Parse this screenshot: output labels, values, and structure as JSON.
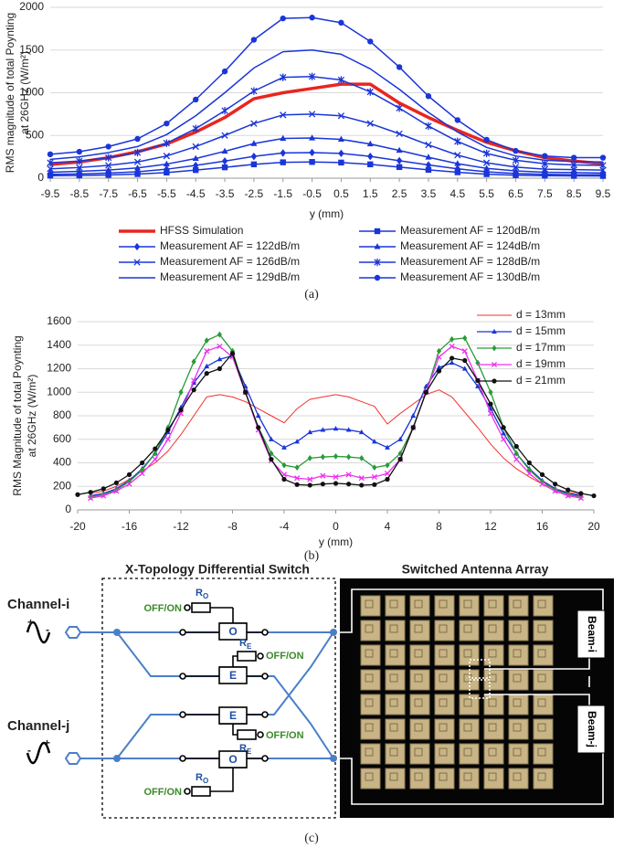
{
  "chart_data": [
    {
      "type": "line",
      "xlabel": "y (mm)",
      "ylabel": [
        "RMS magnitude of total Poynting",
        "at 26GHz  (W/m²)"
      ],
      "x": [
        -9.5,
        -8.5,
        -7.5,
        -6.5,
        -5.5,
        -4.5,
        -3.5,
        -2.5,
        -1.5,
        -0.5,
        0.5,
        1.5,
        2.5,
        3.5,
        4.5,
        5.5,
        6.5,
        7.5,
        8.5,
        9.5
      ],
      "xlim": [
        -9.5,
        9.5
      ],
      "xticks": [
        -9.5,
        -8.5,
        -7.5,
        -6.5,
        -5.5,
        -4.5,
        -3.5,
        -2.5,
        -1.5,
        -0.5,
        0.5,
        1.5,
        2.5,
        3.5,
        4.5,
        5.5,
        6.5,
        7.5,
        8.5,
        9.5
      ],
      "ylim": [
        0,
        2000
      ],
      "yticks": [
        0,
        500,
        1000,
        1500,
        2000
      ],
      "grid": true,
      "legend": "bottom",
      "series": [
        {
          "name": "HFSS Simulation",
          "color": "#e8261f",
          "marker": "none",
          "linewidth": 3.5,
          "values": [
            160,
            190,
            240,
            310,
            400,
            540,
            710,
            930,
            1000,
            1050,
            1100,
            1100,
            880,
            710,
            560,
            420,
            320,
            240,
            200,
            170
          ]
        },
        {
          "name": "Measurement AF = 120dB/m",
          "color": "#1a35d8",
          "marker": "square",
          "linewidth": 1.5,
          "values": [
            30,
            32,
            38,
            48,
            66,
            95,
            127,
            162,
            186,
            190,
            183,
            162,
            130,
            98,
            69,
            47,
            35,
            29,
            27,
            26
          ]
        },
        {
          "name": "Measurement AF = 122dB/m",
          "color": "#1a35d8",
          "marker": "diamond",
          "linewidth": 1.5,
          "values": [
            45,
            50,
            60,
            75,
            105,
            150,
            200,
            255,
            295,
            300,
            290,
            255,
            205,
            155,
            110,
            75,
            55,
            45,
            40,
            40
          ]
        },
        {
          "name": "Measurement AF = 124dB/m",
          "color": "#1a35d8",
          "marker": "triangle",
          "linewidth": 1.5,
          "values": [
            70,
            80,
            95,
            120,
            165,
            230,
            315,
            405,
            465,
            470,
            455,
            400,
            325,
            245,
            170,
            115,
            85,
            70,
            65,
            60
          ]
        },
        {
          "name": "Measurement AF = 126dB/m",
          "color": "#1a35d8",
          "marker": "x",
          "linewidth": 1.5,
          "values": [
            110,
            125,
            150,
            190,
            260,
            370,
            500,
            640,
            740,
            750,
            730,
            640,
            520,
            390,
            270,
            180,
            130,
            105,
            100,
            95
          ]
        },
        {
          "name": "Measurement AF = 128dB/m",
          "color": "#1a35d8",
          "marker": "star",
          "linewidth": 1.5,
          "values": [
            180,
            200,
            240,
            300,
            410,
            580,
            790,
            1020,
            1180,
            1190,
            1150,
            1010,
            820,
            610,
            430,
            290,
            210,
            170,
            155,
            150
          ]
        },
        {
          "name": "Measurement AF = 129dB/m",
          "color": "#1a35d8",
          "marker": "none",
          "linewidth": 1.5,
          "values": [
            220,
            250,
            300,
            370,
            510,
            730,
            1000,
            1290,
            1480,
            1500,
            1450,
            1280,
            1040,
            770,
            540,
            360,
            260,
            210,
            195,
            190
          ]
        },
        {
          "name": "Measurement AF = 130dB/m",
          "color": "#1a35d8",
          "marker": "circle",
          "linewidth": 1.5,
          "values": [
            280,
            310,
            370,
            460,
            640,
            920,
            1250,
            1620,
            1870,
            1880,
            1820,
            1600,
            1300,
            960,
            680,
            450,
            320,
            260,
            240,
            240
          ]
        }
      ]
    },
    {
      "type": "line",
      "xlabel": "y (mm)",
      "ylabel": [
        "RMS Magnitude of total Poynting",
        "at 26GHz (W/m²)"
      ],
      "x": [
        -20,
        -19,
        -18,
        -17,
        -16,
        -15,
        -14,
        -13,
        -12,
        -11,
        -10,
        -9,
        -8,
        -7,
        -6,
        -5,
        -4,
        -3,
        -2,
        -1,
        0,
        1,
        2,
        3,
        4,
        5,
        6,
        7,
        8,
        9,
        10,
        11,
        12,
        13,
        14,
        15,
        16,
        17,
        18,
        19,
        20
      ],
      "xlim": [
        -20,
        20
      ],
      "xticks": [
        -20,
        -16,
        -12,
        -8,
        -4,
        0,
        4,
        8,
        12,
        16,
        20
      ],
      "ylim": [
        0,
        1600
      ],
      "yticks": [
        0,
        200,
        400,
        600,
        800,
        1000,
        1200,
        1400,
        1600
      ],
      "grid": true,
      "legend": "upper right",
      "series": [
        {
          "name": "d = 13mm",
          "color": "#f0302a",
          "marker": "none",
          "linewidth": 1,
          "values": [
            null,
            140,
            160,
            200,
            260,
            330,
            400,
            500,
            640,
            800,
            960,
            980,
            960,
            920,
            860,
            800,
            740,
            860,
            940,
            960,
            980,
            960,
            920,
            880,
            730,
            820,
            900,
            980,
            1020,
            960,
            830,
            700,
            560,
            440,
            350,
            280,
            220,
            180,
            150,
            130,
            null
          ]
        },
        {
          "name": "d = 15mm",
          "color": "#1a35d8",
          "marker": "triangle",
          "linewidth": 1.3,
          "values": [
            null,
            120,
            140,
            180,
            250,
            350,
            480,
            660,
            870,
            1080,
            1220,
            1280,
            1310,
            1050,
            800,
            600,
            530,
            580,
            660,
            680,
            690,
            680,
            660,
            580,
            530,
            600,
            800,
            1050,
            1210,
            1250,
            1200,
            1050,
            860,
            650,
            480,
            350,
            250,
            180,
            140,
            120,
            null
          ]
        },
        {
          "name": "d = 17mm",
          "color": "#2a9a3a",
          "marker": "diamond",
          "linewidth": 1.3,
          "values": [
            null,
            110,
            130,
            170,
            240,
            340,
            480,
            700,
            1000,
            1260,
            1440,
            1490,
            1350,
            1000,
            700,
            480,
            380,
            360,
            440,
            450,
            455,
            450,
            440,
            360,
            380,
            480,
            700,
            1000,
            1350,
            1450,
            1460,
            1250,
            1000,
            700,
            480,
            340,
            240,
            170,
            130,
            110,
            null
          ]
        },
        {
          "name": "d = 19mm",
          "color": "#ee30ee",
          "marker": "x",
          "linewidth": 1.3,
          "values": [
            null,
            100,
            120,
            160,
            220,
            310,
            430,
            600,
            820,
            1100,
            1350,
            1390,
            1300,
            1000,
            680,
            420,
            300,
            270,
            260,
            290,
            280,
            300,
            270,
            280,
            310,
            430,
            700,
            1000,
            1300,
            1390,
            1350,
            1100,
            820,
            600,
            430,
            310,
            220,
            160,
            120,
            100,
            null
          ]
        },
        {
          "name": "d = 21mm",
          "color": "#111111",
          "marker": "circle",
          "linewidth": 1.3,
          "values": [
            130,
            150,
            180,
            230,
            300,
            400,
            520,
            680,
            850,
            1020,
            1160,
            1200,
            1330,
            1000,
            700,
            430,
            260,
            215,
            210,
            220,
            225,
            220,
            210,
            215,
            260,
            430,
            700,
            1000,
            1180,
            1290,
            1270,
            1100,
            900,
            700,
            540,
            400,
            300,
            220,
            170,
            140,
            120
          ]
        }
      ]
    }
  ],
  "captions": [
    "(a)",
    "(b)",
    "(c)"
  ],
  "diagram": {
    "title_left": "X-Topology Differential Switch",
    "title_right": "Switched Antenna Array",
    "channels": [
      "Channel-i",
      "Channel-j"
    ],
    "sources": [
      [
        "+",
        "-"
      ],
      [
        "-",
        "+"
      ]
    ],
    "controls": [
      "OFF/ON",
      "OFF/ON",
      "OFF/ON",
      "OFF/ON"
    ],
    "resistors": [
      {
        "symbol": "R",
        "subscript": "O"
      },
      {
        "symbol": "R",
        "subscript": "E"
      },
      {
        "symbol": "R",
        "subscript": "E"
      },
      {
        "symbol": "R",
        "subscript": "O"
      }
    ],
    "switches": [
      "O",
      "E",
      "E",
      "O"
    ],
    "beams": [
      "Beam-i",
      "Beam-j"
    ]
  }
}
